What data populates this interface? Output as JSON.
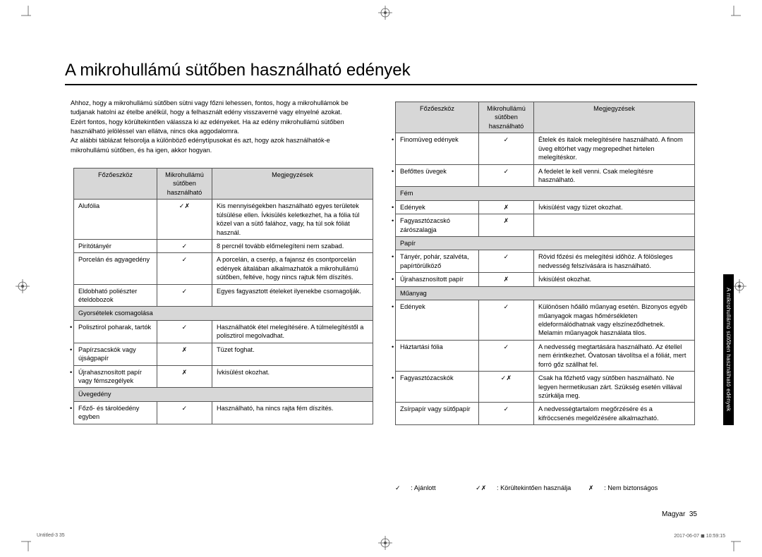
{
  "title": "A mikrohullámú sütőben használható edények",
  "intro_lines": [
    "Ahhoz, hogy a mikrohullámú sütőben sütni vagy főzni lehessen, fontos, hogy a mikrohullámok be tudjanak hatolni az ételbe anélkül, hogy a felhasznált edény visszaverné vagy elnyelné azokat.",
    "Ezért fontos, hogy körültekintően válassza ki az edényeket. Ha az edény mikrohullámú sütőben használható jelöléssel van ellátva, nincs oka aggodalomra.",
    "Az alábbi táblázat felsorolja a különböző edénytípusokat és azt, hogy azok használhatók-e mikrohullámú sütőben, és ha igen, akkor hogyan."
  ],
  "head_tool": "Főzőeszköz",
  "head_use": "Mikrohullámú sütőben használható",
  "head_note": "Megjegyzések",
  "mark_ok": "✓",
  "mark_warn": "✓✗",
  "mark_no": "✗",
  "left_rows": [
    {
      "t": "Alufólia",
      "m": "✓✗",
      "n": "Kis mennyiségekben használható egyes területek túlsülése ellen. Ívkisülés keletkezhet, ha a fólia túl közel van a sütő falához, vagy, ha túl sok fóliát használ."
    },
    {
      "t": "Pirítótányér",
      "m": "✓",
      "n": "8 percnél tovább előmelegíteni nem szabad."
    },
    {
      "t": "Porcelán és agyagedény",
      "m": "✓",
      "n": "A porcelán, a cserép, a fajansz és csontporcelán edények általában alkalmazhatók a mikrohullámú sütőben, feltéve, hogy nincs rajtuk fém díszítés."
    },
    {
      "t": "Eldobható poliészter ételdobozok",
      "m": "✓",
      "n": "Egyes fagyasztott ételeket ilyenekbe csomagolják."
    },
    {
      "t": "Gyorsételek csomagolása",
      "section": true
    },
    {
      "t": "Polisztirol poharak, tartók",
      "sub": true,
      "m": "✓",
      "n": "Használhatók étel melegítésére. A túlmelegítéstől a polisztirol megolvadhat."
    },
    {
      "t": "Papírzsacskók vagy újságpapír",
      "sub": true,
      "m": "✗",
      "n": "Tüzet foghat."
    },
    {
      "t": "Újrahasznosított papír vagy fémszegélyek",
      "sub": true,
      "m": "✗",
      "n": "Ívkisülést okozhat."
    },
    {
      "t": "Üvegedény",
      "section": true
    },
    {
      "t": "Főző- és tárolóedény egyben",
      "sub": true,
      "m": "✓",
      "n": "Használható, ha nincs rajta fém díszítés."
    }
  ],
  "right_rows": [
    {
      "t": "Finomüveg edények",
      "sub": true,
      "m": "✓",
      "n": "Ételek és italok melegítésére használható. A finom üveg eltörhet vagy megrepedhet hirtelen melegítéskor."
    },
    {
      "t": "Befőttes üvegek",
      "sub": true,
      "m": "✓",
      "n": "A fedelet le kell venni. Csak melegítésre használható."
    },
    {
      "t": "Fém",
      "section": true
    },
    {
      "t": "Edények",
      "sub": true,
      "m": "✗",
      "n": "Ívkisülést vagy tüzet okozhat."
    },
    {
      "t": "Fagyasztózacskó zárószalagja",
      "sub": true,
      "m": "✗",
      "n": ""
    },
    {
      "t": "Papír",
      "section": true
    },
    {
      "t": "Tányér, pohár, szalvéta, papírtörülköző",
      "sub": true,
      "m": "✓",
      "n": "Rövid főzési és melegítési időhöz. A fölösleges nedvesség felszívására is használható."
    },
    {
      "t": "Újrahasznosított papír",
      "sub": true,
      "m": "✗",
      "n": "Ívkisülést okozhat."
    },
    {
      "t": "Műanyag",
      "section": true
    },
    {
      "t": "Edények",
      "sub": true,
      "m": "✓",
      "n": "Különösen hőálló műanyag esetén. Bizonyos egyéb műanyagok magas hőmérsékleten eldeformálódhatnak vagy elszíneződhetnek. Melamin műanyagok használata tilos."
    },
    {
      "t": "Háztartási fólia",
      "sub": true,
      "m": "✓",
      "n": "A nedvesség megtartására használható. Az étellel nem érintkezhet. Óvatosan távolítsa el a fóliát, mert forró gőz szállhat fel."
    },
    {
      "t": "Fagyasztózacskók",
      "sub": true,
      "m": "✓✗",
      "n": "Csak ha főzhető vagy sütőben használható. Ne legyen hermetikusan zárt. Szükség esetén villával szúrkálja meg."
    },
    {
      "t": "Zsírpapír vagy sütőpapír",
      "m": "✓",
      "n": "A nedvességtartalom megőrzésére és a kifröccsenés megelőzésére alkalmazható."
    }
  ],
  "legend_ok": ": Ajánlott",
  "legend_warn": ": Körültekintően használja",
  "legend_no": ": Nem biztonságos",
  "side_tab": "A mikrohullámú sütőben használható edények",
  "lang": "Magyar",
  "page_num": "35",
  "foot_left": "Untitled-3   35",
  "foot_right": "2017-06-07   ◼ 10:59:15"
}
